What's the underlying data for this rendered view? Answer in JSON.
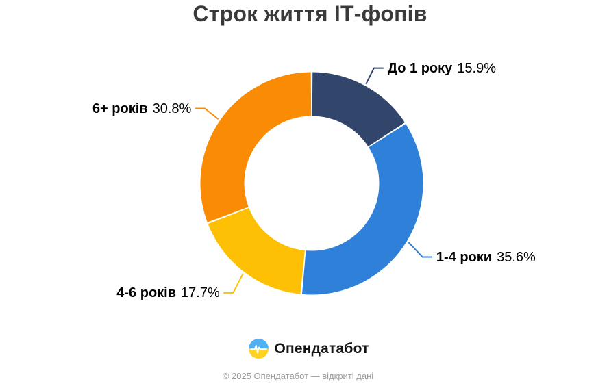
{
  "title": "Строк життя ІТ-фопів",
  "chart_data": {
    "type": "pie",
    "subtype": "donut",
    "title": "Строк життя ІТ-фопів",
    "unit": "%",
    "direction": "clockwise",
    "start_angle_deg": 0,
    "legend_position": "callout-labels",
    "slices": [
      {
        "label": "До 1 року",
        "value": 15.9,
        "pct_label": "15.9%",
        "color": "#32456b"
      },
      {
        "label": "1-4 роки",
        "value": 35.6,
        "pct_label": "35.6%",
        "color": "#2e80d9"
      },
      {
        "label": "4-6 років",
        "value": 17.7,
        "pct_label": "17.7%",
        "color": "#fdc004"
      },
      {
        "label": "6+ років",
        "value": 30.8,
        "pct_label": "30.8%",
        "color": "#f98b05"
      }
    ]
  },
  "branding": {
    "logo_text": "Опендатабот",
    "logo_icon": "opendatabot-pulse-circle",
    "logo_colors": {
      "top": "#4fb1f2",
      "bottom": "#ffd21f",
      "pulse": "#ffffff"
    }
  },
  "footer": {
    "text": "© 2025 Опендатабот — відкриті дані"
  }
}
